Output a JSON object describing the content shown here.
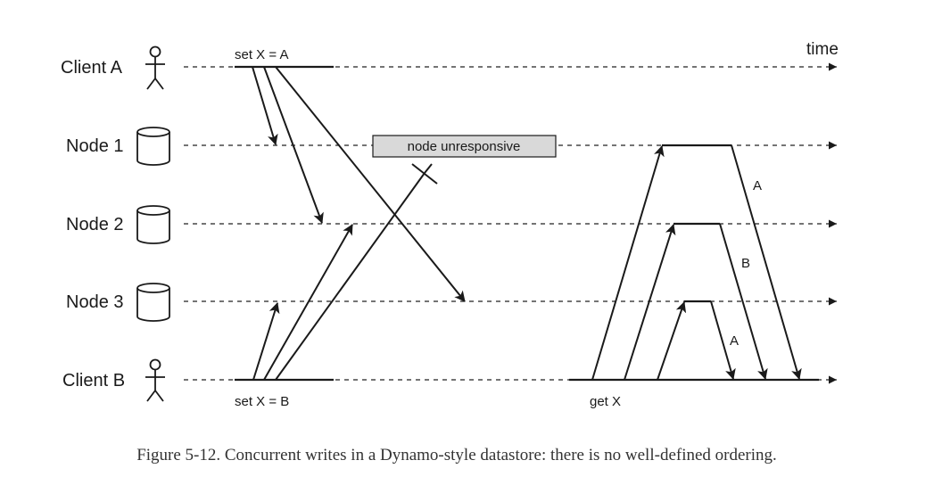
{
  "lanes": {
    "client_a": "Client A",
    "node_1": "Node 1",
    "node_2": "Node 2",
    "node_3": "Node 3",
    "client_b": "Client B"
  },
  "time_label": "time",
  "ops": {
    "set_a": "set X = A",
    "set_b": "set X = B",
    "get_x": "get X"
  },
  "unresponsive_label": "node unresponsive",
  "responses": {
    "node_1": "A",
    "node_2": "B",
    "node_3": "A"
  },
  "caption": "Figure 5-12. Concurrent writes in a Dynamo-style datastore: there is no well-defined ordering.",
  "colors": {
    "ink": "#1a1a1a",
    "unresponsive_box": "#d9d9d9"
  }
}
